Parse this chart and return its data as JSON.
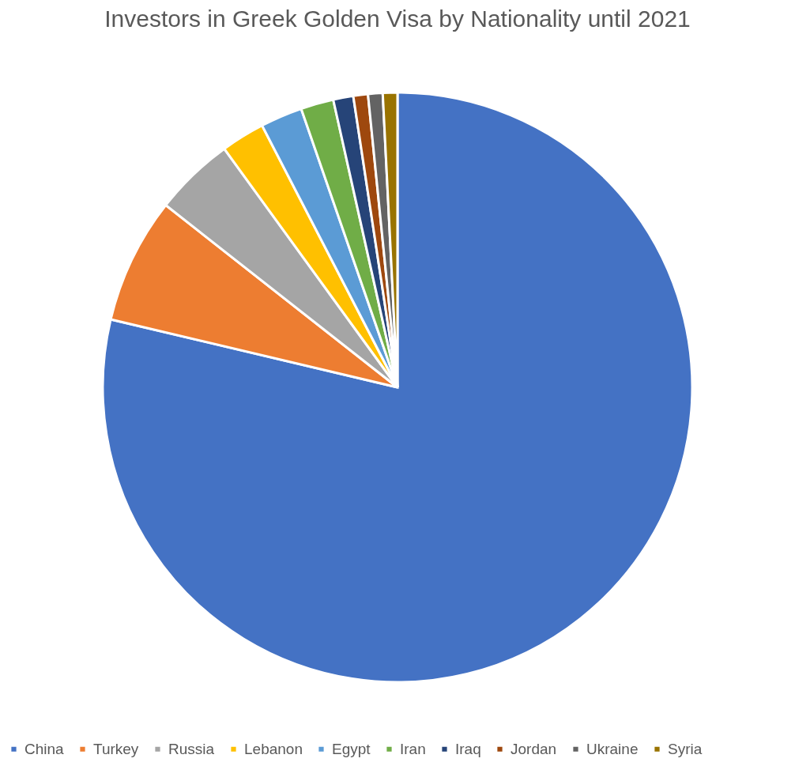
{
  "chart_data": {
    "type": "pie",
    "title": "Investors in Greek Golden Visa by Nationality until 2021",
    "categories": [
      "China",
      "Turkey",
      "Russia",
      "Lebanon",
      "Egypt",
      "Iran",
      "Iraq",
      "Jordan",
      "Ukraine",
      "Syria"
    ],
    "values": [
      78.7,
      6.9,
      4.4,
      2.4,
      2.3,
      1.8,
      1.1,
      0.8,
      0.8,
      0.8
    ],
    "colors": [
      "#4472c4",
      "#ed7d31",
      "#a5a5a5",
      "#ffc000",
      "#5b9bd5",
      "#70ad47",
      "#264478",
      "#9e480e",
      "#636363",
      "#997300"
    ],
    "legend": "bottom"
  }
}
